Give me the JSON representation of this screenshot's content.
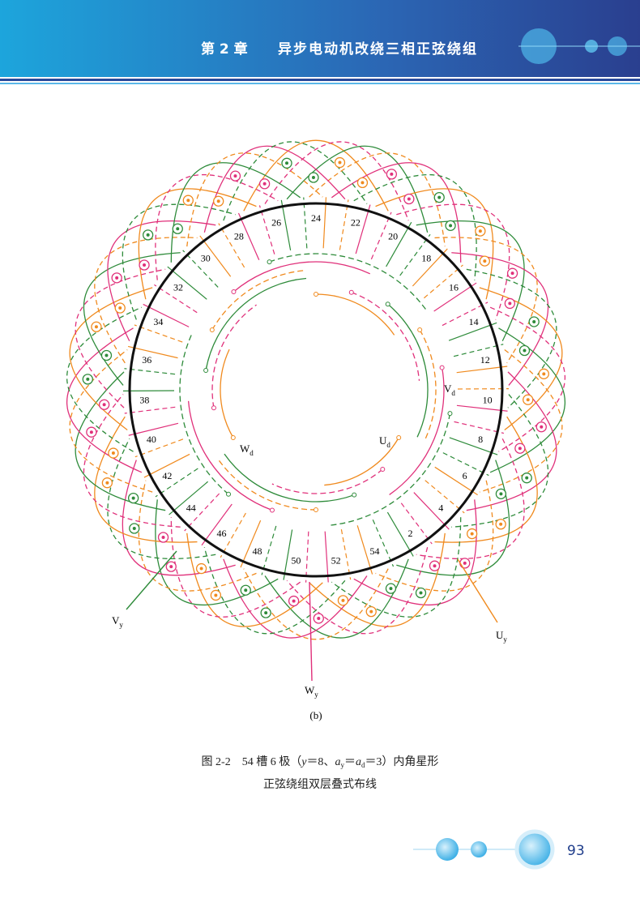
{
  "header": {
    "chapter": "第 2 章",
    "title": "异步电动机改绕三相正弦绕组"
  },
  "figure": {
    "slot_labels": [
      "24",
      "22",
      "20",
      "18",
      "16",
      "14",
      "12",
      "10",
      "8",
      "6",
      "4",
      "2",
      "54",
      "52",
      "50",
      "48",
      "46",
      "44",
      "42",
      "40",
      "38",
      "36",
      "34",
      "32",
      "30",
      "28",
      "26"
    ],
    "terminals": {
      "Vd": {
        "main": "V",
        "sub": "d"
      },
      "Ud": {
        "main": "U",
        "sub": "d"
      },
      "Wd": {
        "main": "W",
        "sub": "d"
      },
      "Vy": {
        "main": "V",
        "sub": "y"
      },
      "Uy": {
        "main": "U",
        "sub": "y"
      },
      "Wy": {
        "main": "W",
        "sub": "y"
      }
    },
    "sublabel": "(b)"
  },
  "caption": {
    "line1": [
      "图 2-2　54 槽 6 极（",
      "y",
      "＝8、",
      "a",
      "y",
      "＝",
      "a",
      "d",
      "＝3）内角星形"
    ],
    "line2": "正弦绕组双层叠式布线"
  },
  "footer": {
    "page_number": "93"
  }
}
